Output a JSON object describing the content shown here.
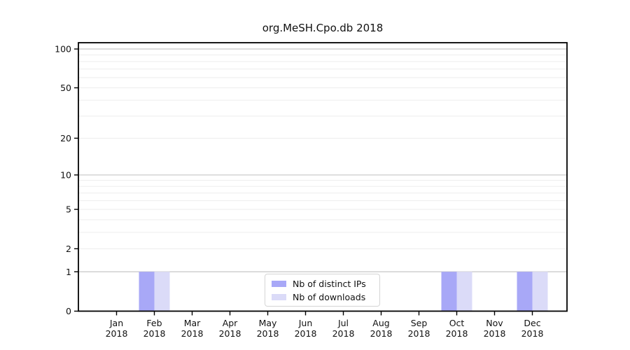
{
  "chart_data": {
    "type": "bar",
    "title": "org.MeSH.Cpo.db 2018",
    "xlabel": "",
    "ylabel": "",
    "yscale": "log1p",
    "ylim": [
      0,
      112
    ],
    "y_ticks": [
      0,
      1,
      2,
      5,
      10,
      20,
      50,
      100
    ],
    "grid": {
      "major": [
        1,
        10,
        100
      ],
      "minor": [
        2,
        3,
        4,
        5,
        6,
        7,
        8,
        9,
        20,
        30,
        40,
        50,
        60,
        70,
        80,
        90
      ]
    },
    "categories": [
      "Jan 2018",
      "Feb 2018",
      "Mar 2018",
      "Apr 2018",
      "May 2018",
      "Jun 2018",
      "Jul 2018",
      "Aug 2018",
      "Sep 2018",
      "Oct 2018",
      "Nov 2018",
      "Dec 2018"
    ],
    "series": [
      {
        "name": "Nb of distinct IPs",
        "color": "#a8a8f7",
        "values": [
          0,
          1,
          0,
          0,
          0,
          0,
          0,
          0,
          0,
          1,
          0,
          1
        ]
      },
      {
        "name": "Nb of downloads",
        "color": "#dbdbf8",
        "values": [
          0,
          1,
          0,
          0,
          0,
          0,
          0,
          0,
          0,
          1,
          0,
          1
        ]
      }
    ],
    "legend_position": "bottom-center",
    "colors": {
      "grid_major": "#c6c6c6",
      "grid_minor": "#ededed",
      "axis": "#000000",
      "text": "#111111"
    }
  }
}
